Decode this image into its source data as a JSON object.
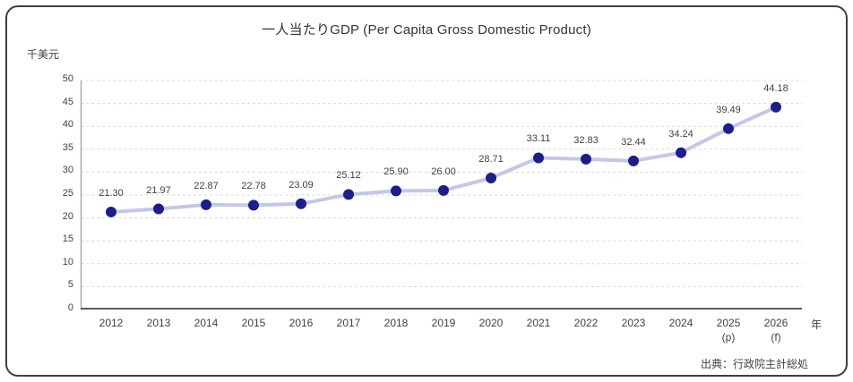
{
  "frame": {
    "title": "一人当たりGDP (Per Capita Gross Domestic Product)",
    "unit_label": "千美元",
    "x_axis_suffix": "年",
    "source": "出典：行政院主計総処"
  },
  "chart_data": {
    "type": "line",
    "title": "一人当たりGDP (Per Capita Gross Domestic Product)",
    "ylabel": "千美元",
    "xlabel": "年",
    "categories": [
      "2012",
      "2013",
      "2014",
      "2015",
      "2016",
      "2017",
      "2018",
      "2019",
      "2020",
      "2021",
      "2022",
      "2023",
      "2024",
      "2025",
      "2026"
    ],
    "category_subs": [
      "",
      "",
      "",
      "",
      "",
      "",
      "",
      "",
      "",
      "",
      "",
      "",
      "",
      "(p)",
      "(f)"
    ],
    "values": [
      21.3,
      21.97,
      22.87,
      22.78,
      23.09,
      25.12,
      25.9,
      26.0,
      28.71,
      33.11,
      32.83,
      32.44,
      34.24,
      39.49,
      44.18
    ],
    "data_labels": [
      "21.30",
      "21.97",
      "22.87",
      "22.78",
      "23.09",
      "25.12",
      "25.90",
      "26.00",
      "28.71",
      "33.11",
      "32.83",
      "32.44",
      "34.24",
      "39.49",
      "44.18"
    ],
    "ylim": [
      0,
      50
    ],
    "ytick_step": 5,
    "grid": true,
    "legend_position": "none",
    "colors": {
      "line": "#c3c7e8",
      "marker": "#1b1e8c",
      "gridline": "#d9d9d9",
      "y_axis_line": "#a6a6a6",
      "x_axis_line": "#595959",
      "text": "#404040"
    }
  }
}
